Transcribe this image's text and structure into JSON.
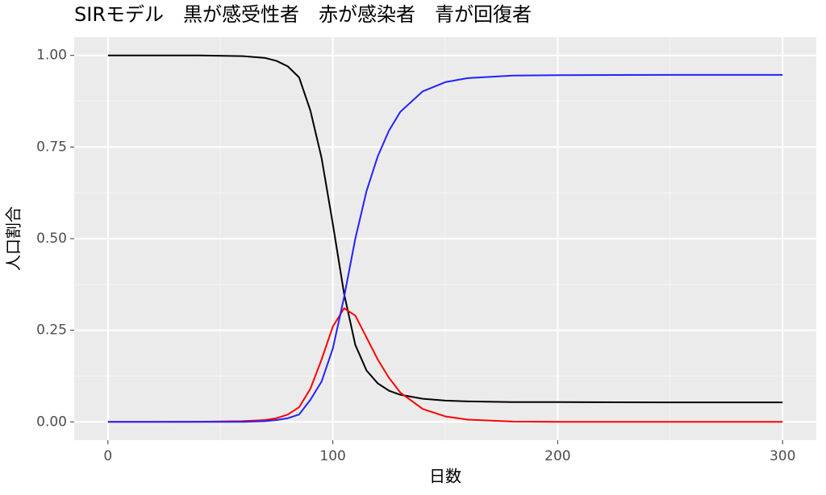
{
  "chart_data": {
    "type": "line",
    "title": "SIRモデル　黒が感受性者　赤が感染者　青が回復者",
    "x_label": "日数",
    "y_label": "人口割合",
    "x": [
      0,
      20,
      40,
      60,
      70,
      75,
      80,
      85,
      90,
      95,
      100,
      105,
      110,
      115,
      120,
      125,
      130,
      140,
      150,
      160,
      180,
      200,
      250,
      300
    ],
    "series": [
      {
        "color": "#000000",
        "values": [
          1,
          1,
          1,
          0.998,
          0.993,
          0.985,
          0.97,
          0.94,
          0.85,
          0.72,
          0.54,
          0.35,
          0.21,
          0.14,
          0.105,
          0.085,
          0.074,
          0.063,
          0.058,
          0.056,
          0.054,
          0.054,
          0.053,
          0.053
        ]
      },
      {
        "color": "#ff0000",
        "values": [
          0,
          0,
          0.0002,
          0.002,
          0.005,
          0.01,
          0.02,
          0.04,
          0.09,
          0.17,
          0.26,
          0.31,
          0.29,
          0.23,
          0.17,
          0.12,
          0.08,
          0.035,
          0.015,
          0.006,
          0.001,
          0,
          0,
          0
        ]
      },
      {
        "color": "#2222ff",
        "values": [
          0,
          0,
          0,
          0,
          0.002,
          0.005,
          0.01,
          0.02,
          0.06,
          0.11,
          0.2,
          0.34,
          0.5,
          0.63,
          0.725,
          0.795,
          0.846,
          0.902,
          0.927,
          0.938,
          0.945,
          0.946,
          0.947,
          0.947
        ]
      }
    ],
    "xlim": [
      -15,
      315
    ],
    "ylim": [
      -0.05,
      1.05
    ],
    "xticks": [
      0,
      100,
      200,
      300
    ],
    "yticks": [
      {
        "value": 0,
        "label": "0.00"
      },
      {
        "value": 0.25,
        "label": "0.25"
      },
      {
        "value": 0.5,
        "label": "0.50"
      },
      {
        "value": 0.75,
        "label": "0.75"
      },
      {
        "value": 1,
        "label": "1.00"
      }
    ],
    "xminor": [
      50,
      150,
      250
    ],
    "yminor": [
      0.125,
      0.375,
      0.625,
      0.875
    ],
    "grid": true
  }
}
